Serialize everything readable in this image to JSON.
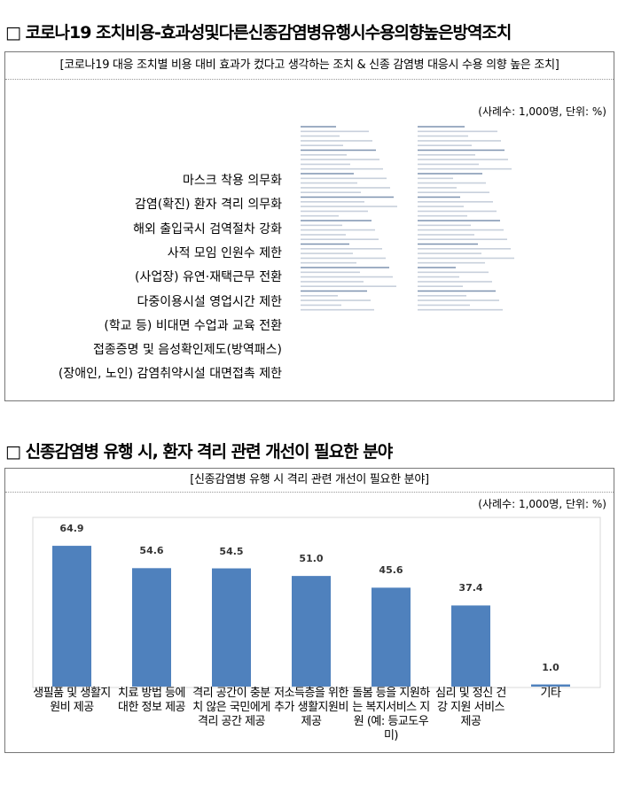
{
  "section1": {
    "heading": "□ 코로나19 조치비용-효과성및다른신종감염병유행시수용의향높은방역조치",
    "box_title": "[코로나19 대응 조치별 비용 대비 효과가 컸다고 생각하는 조치 & 신종 감염병 대응시 수용 의향 높은 조치]",
    "unit": "(사례수: 1,000명, 단위: %)",
    "items": [
      "마스크 착용 의무화",
      "감염(확진) 환자 격리 의무화",
      "해외 출입국시 검역절차 강화",
      "사적 모임 인원수 제한",
      "(사업장) 유연·재택근무 전환",
      "다중이용시설 영업시간 제한",
      "(학교 등) 비대면 수업과 교육 전환",
      "접종증명 및 음성확인제도(방역패스)",
      "(장애인, 노인) 감염취약시설 대면접촉 제한"
    ]
  },
  "section2": {
    "heading": "□ 신종감염병 유행 시, 환자 격리 관련 개선이 필요한 분야",
    "box_title": "[신종감염병 유행 시 격리 관련 개선이 필요한 분야]",
    "unit": "(사례수: 1,000명, 단위: %)"
  },
  "chart_data": {
    "type": "bar",
    "categories": [
      "생필품 및 생활지원비 제공",
      "치료 방법 등에 대한 정보 제공",
      "격리 공간이 충분치 않은 국민에게 격리 공간 제공",
      "저소득층을 위한 추가 생활지원비 제공",
      "돌봄 등을 지원하는 복지서비스 지원 (예: 등교도우미)",
      "심리 및 정신 건강 지원 서비스 제공",
      "기타"
    ],
    "values": [
      64.9,
      54.6,
      54.5,
      51.0,
      45.6,
      37.4,
      1.0
    ],
    "value_labels": [
      "64.9",
      "54.6",
      "54.5",
      "51.0",
      "45.6",
      "37.4",
      "1.0"
    ],
    "color": "#4f81bd",
    "ylim": [
      0,
      78
    ]
  }
}
